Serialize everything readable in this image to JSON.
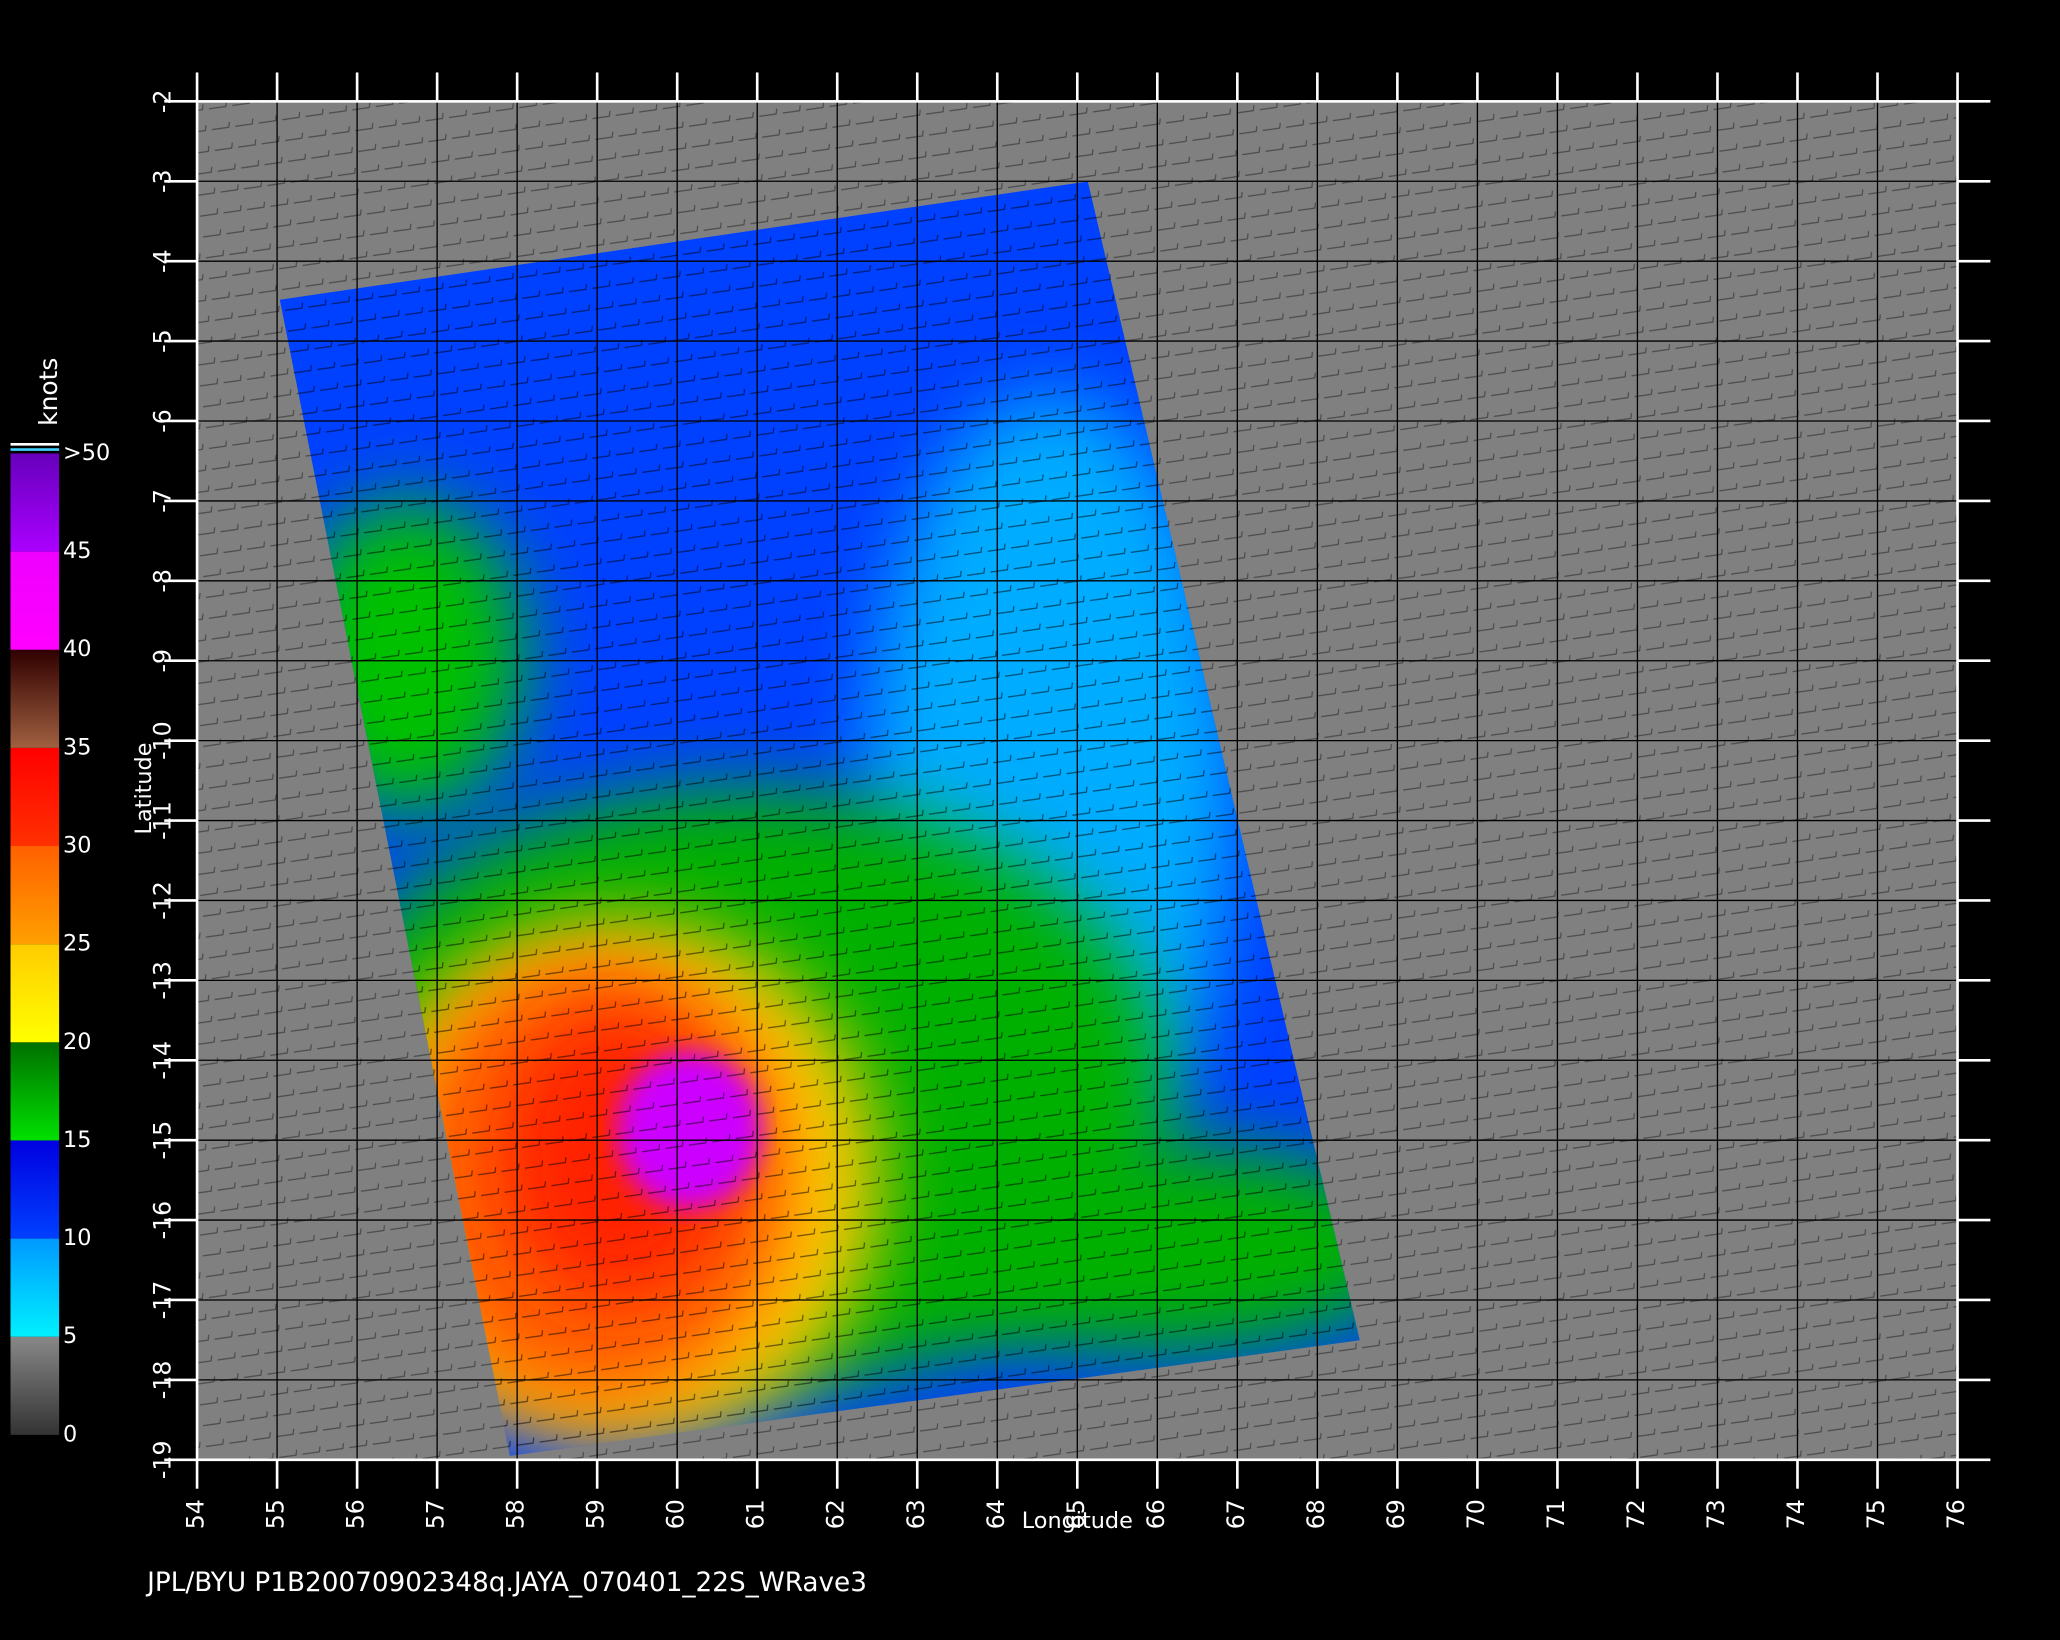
{
  "map": {
    "xlabel": "Longitude",
    "ylabel": "Latitude",
    "xlim": [
      54,
      76
    ],
    "ylim": [
      -19,
      -2
    ],
    "xticks": [
      54,
      55,
      56,
      57,
      58,
      59,
      60,
      61,
      62,
      63,
      64,
      65,
      66,
      67,
      68,
      69,
      70,
      71,
      72,
      73,
      74,
      75,
      76
    ],
    "yticks": [
      -2,
      -3,
      -4,
      -5,
      -6,
      -7,
      -8,
      -9,
      -10,
      -11,
      -12,
      -13,
      -14,
      -15,
      -16,
      -17,
      -18,
      -19
    ]
  },
  "colorbar": {
    "title": "knots",
    "ticks": [
      0,
      5,
      10,
      15,
      20,
      25,
      30,
      35,
      40,
      45,
      {
        "value": 50,
        "label": ">50"
      }
    ],
    "colors": [
      [
        "#333333",
        "#888888"
      ],
      [
        "#00f0ff",
        "#0099ff"
      ],
      [
        "#0040ff",
        "#0000e0"
      ],
      [
        "#00e000",
        "#007000"
      ],
      [
        "#ffff00",
        "#ffcc00"
      ],
      [
        "#ffa000",
        "#ff6000"
      ],
      [
        "#ff3000",
        "#ff0000"
      ],
      [
        "#a06040",
        "#300000"
      ],
      [
        "#ff00ff",
        "#ee00ff"
      ],
      [
        "#aa00ff",
        "#6600bb"
      ]
    ]
  },
  "footer": "JPL/BYU  P1B20070902348q.JAYA_070401_22S_WRave3"
}
